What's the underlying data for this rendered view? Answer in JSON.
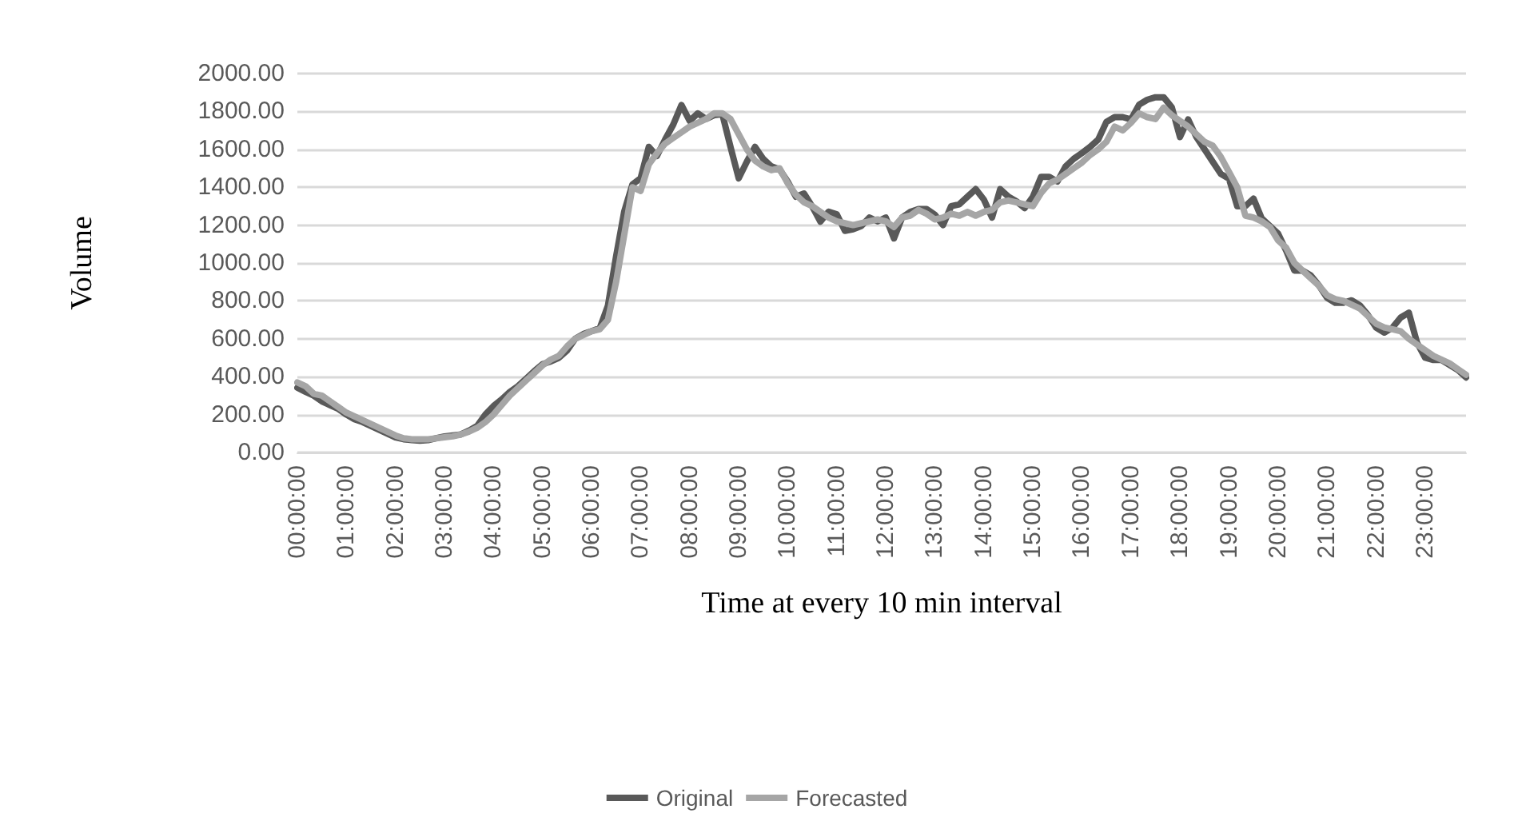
{
  "chart_data": {
    "type": "line",
    "xlabel": "Time at every 10 min interval",
    "ylabel": "Volume",
    "categories": [
      "00:00:00",
      null,
      null,
      null,
      null,
      null,
      "01:00:00",
      null,
      null,
      null,
      null,
      null,
      "02:00:00",
      null,
      null,
      null,
      null,
      null,
      "03:00:00",
      null,
      null,
      null,
      null,
      null,
      "04:00:00",
      null,
      null,
      null,
      null,
      null,
      "05:00:00",
      null,
      null,
      null,
      null,
      null,
      "06:00:00",
      null,
      null,
      null,
      null,
      null,
      "07:00:00",
      null,
      null,
      null,
      null,
      null,
      "08:00:00",
      null,
      null,
      null,
      null,
      null,
      "09:00:00",
      null,
      null,
      null,
      null,
      null,
      "10:00:00",
      null,
      null,
      null,
      null,
      null,
      "11:00:00",
      null,
      null,
      null,
      null,
      null,
      "12:00:00",
      null,
      null,
      null,
      null,
      null,
      "13:00:00",
      null,
      null,
      null,
      null,
      null,
      "14:00:00",
      null,
      null,
      null,
      null,
      null,
      "15:00:00",
      null,
      null,
      null,
      null,
      null,
      "16:00:00",
      null,
      null,
      null,
      null,
      null,
      "17:00:00",
      null,
      null,
      null,
      null,
      null,
      "18:00:00",
      null,
      null,
      null,
      null,
      null,
      "19:00:00",
      null,
      null,
      null,
      null,
      null,
      "20:00:00",
      null,
      null,
      null,
      null,
      null,
      "21:00:00",
      null,
      null,
      null,
      null,
      null,
      "22:00:00",
      null,
      null,
      null,
      null,
      null,
      "23:00:00",
      null,
      null,
      null,
      null,
      null
    ],
    "series": [
      {
        "name": "Original",
        "color": "#595959",
        "values": [
          342,
          320,
          300,
          270,
          250,
          230,
          200,
          175,
          160,
          140,
          120,
          100,
          80,
          70,
          65,
          62,
          65,
          75,
          85,
          90,
          95,
          115,
          140,
          200,
          245,
          280,
          320,
          350,
          390,
          430,
          466,
          480,
          500,
          538,
          600,
          625,
          640,
          656,
          775,
          1035,
          1273,
          1415,
          1447,
          1613,
          1565,
          1652,
          1731,
          1834,
          1750,
          1790,
          1760,
          1780,
          1786,
          1613,
          1447,
          1535,
          1613,
          1550,
          1510,
          1495,
          1430,
          1350,
          1367,
          1298,
          1218,
          1271,
          1257,
          1170,
          1178,
          1195,
          1240,
          1220,
          1240,
          1130,
          1240,
          1270,
          1285,
          1285,
          1255,
          1200,
          1300,
          1310,
          1350,
          1390,
          1335,
          1240,
          1390,
          1350,
          1325,
          1290,
          1350,
          1455,
          1455,
          1430,
          1510,
          1550,
          1580,
          1613,
          1652,
          1745,
          1770,
          1770,
          1758,
          1836,
          1862,
          1875,
          1875,
          1822,
          1665,
          1758,
          1665,
          1600,
          1535,
          1470,
          1445,
          1300,
          1300,
          1340,
          1235,
          1195,
          1155,
          1064,
          960,
          960,
          935,
          882,
          816,
          790,
          790,
          803,
          777,
          725,
          659,
          633,
          659,
          712,
          738,
          580,
          500,
          488,
          488,
          462,
          435,
          396
        ]
      },
      {
        "name": "Forecasted",
        "color": "#a6a6a6",
        "values": [
          370,
          350,
          310,
          300,
          270,
          240,
          210,
          190,
          170,
          150,
          130,
          110,
          90,
          75,
          70,
          70,
          70,
          75,
          80,
          85,
          95,
          110,
          130,
          160,
          200,
          250,
          300,
          340,
          380,
          420,
          460,
          490,
          510,
          560,
          600,
          620,
          640,
          650,
          700,
          900,
          1150,
          1400,
          1380,
          1520,
          1580,
          1630,
          1660,
          1690,
          1720,
          1740,
          1760,
          1790,
          1790,
          1760,
          1680,
          1600,
          1540,
          1510,
          1490,
          1500,
          1420,
          1360,
          1320,
          1300,
          1270,
          1240,
          1220,
          1210,
          1200,
          1210,
          1220,
          1230,
          1220,
          1190,
          1240,
          1250,
          1280,
          1260,
          1230,
          1240,
          1260,
          1250,
          1270,
          1250,
          1270,
          1280,
          1320,
          1330,
          1320,
          1310,
          1300,
          1370,
          1420,
          1440,
          1470,
          1500,
          1530,
          1570,
          1600,
          1640,
          1720,
          1700,
          1740,
          1790,
          1770,
          1760,
          1820,
          1780,
          1750,
          1720,
          1680,
          1640,
          1620,
          1560,
          1480,
          1400,
          1250,
          1240,
          1220,
          1190,
          1120,
          1080,
          1000,
          960,
          920,
          880,
          830,
          810,
          800,
          780,
          760,
          720,
          680,
          660,
          650,
          640,
          600,
          570,
          540,
          510,
          490,
          470,
          440,
          410
        ]
      }
    ],
    "ylim": [
      0,
      2000
    ],
    "yticks": [
      {
        "value": 0,
        "label": "0.00"
      },
      {
        "value": 200,
        "label": "200.00"
      },
      {
        "value": 400,
        "label": "400.00"
      },
      {
        "value": 600,
        "label": "600.00"
      },
      {
        "value": 800,
        "label": "800.00"
      },
      {
        "value": 1000,
        "label": "1000.00"
      },
      {
        "value": 1200,
        "label": "1200.00"
      },
      {
        "value": 1400,
        "label": "1400.00"
      },
      {
        "value": 1600,
        "label": "1600.00"
      },
      {
        "value": 1800,
        "label": "1800.00"
      },
      {
        "value": 2000,
        "label": "2000.00"
      }
    ],
    "grid": "y",
    "legend": "bottom",
    "marker": "none",
    "line_style": "solid"
  }
}
